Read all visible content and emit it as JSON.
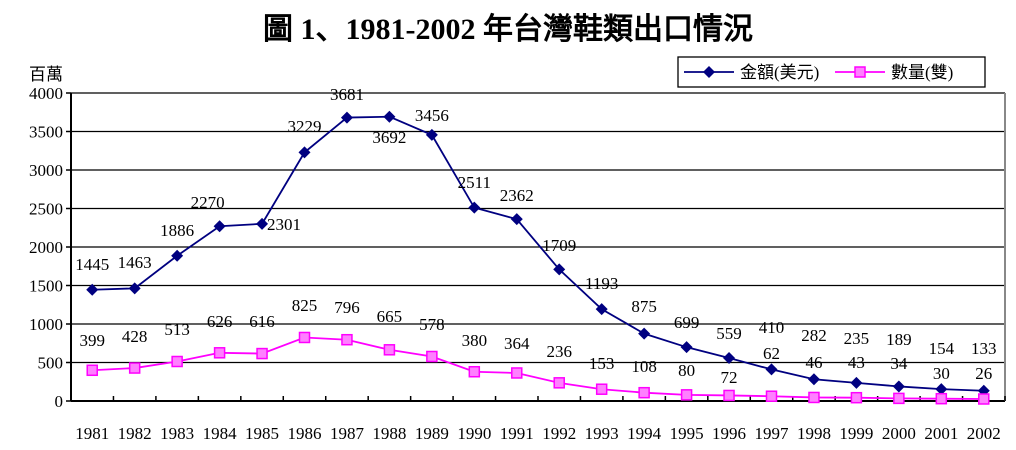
{
  "chart_data": {
    "type": "line",
    "title": "圖 1、1981-2002 年台灣鞋類出口情況",
    "ylabel": "百萬",
    "ylim": [
      0,
      4000
    ],
    "yticks": [
      0,
      500,
      1000,
      1500,
      2000,
      2500,
      3000,
      3500,
      4000
    ],
    "grid": true,
    "legend_position": "top-right",
    "categories": [
      "1981",
      "1982",
      "1983",
      "1984",
      "1985",
      "1986",
      "1987",
      "1988",
      "1989",
      "1990",
      "1991",
      "1992",
      "1993",
      "1994",
      "1995",
      "1996",
      "1997",
      "1998",
      "1999",
      "2000",
      "2001",
      "2002"
    ],
    "series": [
      {
        "name": "金額(美元)",
        "color": "#000080",
        "marker": "diamond",
        "values": [
          1445,
          1463,
          1886,
          2270,
          2301,
          3229,
          3681,
          3692,
          3456,
          2511,
          2362,
          1709,
          1193,
          875,
          699,
          559,
          410,
          282,
          235,
          189,
          154,
          133
        ]
      },
      {
        "name": "數量(雙)",
        "color": "#FF00FF",
        "marker": "square",
        "values": [
          399,
          428,
          513,
          626,
          616,
          825,
          796,
          665,
          578,
          380,
          364,
          236,
          153,
          108,
          80,
          72,
          62,
          46,
          43,
          34,
          30,
          26
        ]
      }
    ]
  }
}
